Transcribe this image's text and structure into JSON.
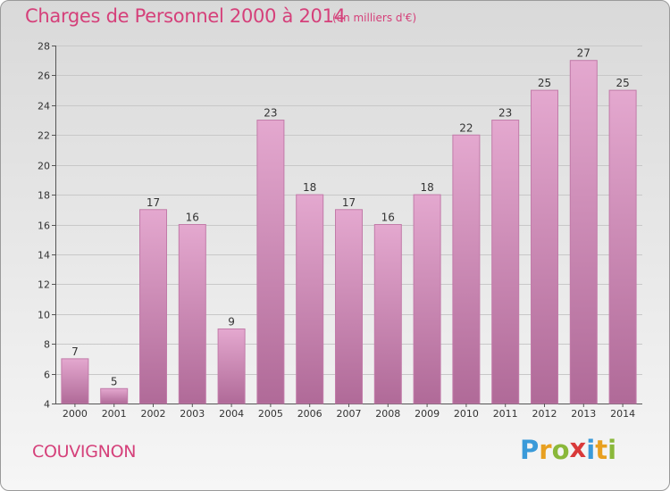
{
  "header": {
    "title": "Charges de Personnel 2000 à 2014",
    "subtitle": "(en milliers d'€)"
  },
  "footer": {
    "commune": "COUVIGNON",
    "logo": "Proxiti",
    "logo_letters": [
      {
        "ch": "P",
        "color": "#3a9ad9"
      },
      {
        "ch": "r",
        "color": "#e8a020"
      },
      {
        "ch": "o",
        "color": "#8ab83a"
      },
      {
        "ch": "x",
        "color": "#d93a3a"
      },
      {
        "ch": "i",
        "color": "#3a9ad9"
      },
      {
        "ch": "t",
        "color": "#e8a020"
      },
      {
        "ch": "i",
        "color": "#8ab83a"
      }
    ]
  },
  "colors": {
    "title": "#d5407a",
    "bar_top": "#e4a8cf",
    "bar_bottom": "#b06a98",
    "bar_stroke": "#c27ba9"
  },
  "chart_data": {
    "type": "bar",
    "categories": [
      "2000",
      "2001",
      "2002",
      "2003",
      "2004",
      "2005",
      "2006",
      "2007",
      "2008",
      "2009",
      "2010",
      "2011",
      "2012",
      "2013",
      "2014"
    ],
    "values": [
      7,
      5,
      17,
      16,
      9,
      23,
      18,
      17,
      16,
      18,
      22,
      23,
      25,
      27,
      25
    ],
    "ylim": [
      4,
      28
    ],
    "yticks": [
      4,
      6,
      8,
      10,
      12,
      14,
      16,
      18,
      20,
      22,
      24,
      26,
      28
    ],
    "grid": true
  }
}
